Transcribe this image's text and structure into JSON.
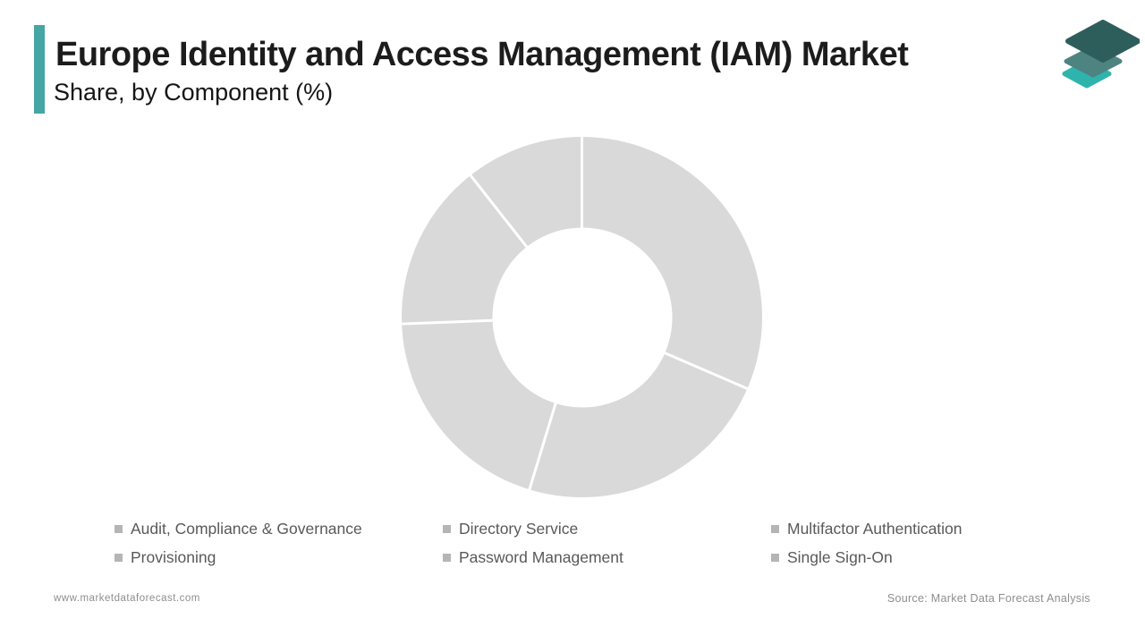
{
  "header": {
    "title": "Europe Identity and Access Management (IAM) Market",
    "subtitle": "Share, by Component (%)",
    "accent_color": "#46A5A5"
  },
  "logo": {
    "name": "market-data-forecast-logo",
    "layer_colors": [
      "#2EB4AD",
      "#4D8482",
      "#2E5E5C"
    ]
  },
  "chart_data": {
    "type": "pie",
    "style": "donut",
    "title": "Europe Identity and Access Management (IAM) Market Share, by Component (%)",
    "categories": [
      "Audit, Compliance & Governance",
      "Directory Service",
      "Multifactor Authentication",
      "Provisioning",
      "Password Management",
      "Single Sign-On"
    ],
    "values_labeled": false,
    "visible_segments_percent": [
      31.5,
      23.2,
      19.7,
      15.0,
      10.6
    ],
    "start_angle_deg": 0,
    "direction": "clockwise",
    "outer_radius_px": 201,
    "inner_radius_px": 100,
    "segment_color": "#D9D9D9",
    "separator_color": "#FFFFFF",
    "legend_position": "bottom",
    "legend_marker_color": "#B5B5B5"
  },
  "legend": {
    "items": [
      "Audit, Compliance & Governance",
      "Directory Service",
      "Multifactor Authentication",
      "Provisioning",
      "Password Management",
      "Single Sign-On"
    ]
  },
  "footer": {
    "website": "www.marketdataforecast.com",
    "source": "Source: Market Data Forecast Analysis"
  }
}
